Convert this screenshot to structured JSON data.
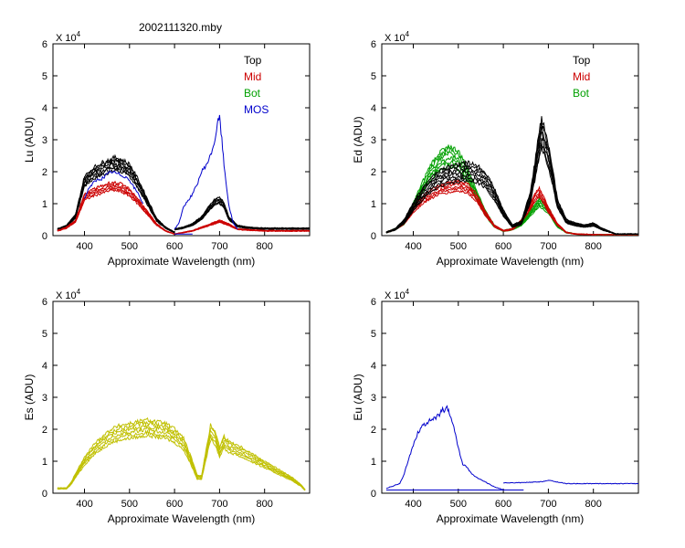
{
  "figure_title": "2002111320.mby",
  "chart_data": [
    {
      "id": "lu",
      "type": "line",
      "ylabel": "Lu  (ADU)",
      "xlabel": "Approximate Wavelength (nm)",
      "xlim": [
        330,
        900
      ],
      "ylim": [
        0,
        6
      ],
      "xticks": [
        400,
        500,
        600,
        700,
        800
      ],
      "yticks": [
        0,
        1,
        2,
        3,
        4,
        5,
        6
      ],
      "xtick_labels": [
        "400",
        "500",
        "600",
        "700",
        "800"
      ],
      "ytick_labels": [
        "0",
        "1",
        "2",
        "3",
        "4",
        "5",
        "6"
      ],
      "multiplier": "X 10",
      "multiplier_exp": "4",
      "legend": [
        {
          "label": "Top",
          "color": "#000000"
        },
        {
          "label": "Mid",
          "color": "#cc0000"
        },
        {
          "label": "Bot",
          "color": "#00a000"
        },
        {
          "label": "MOS",
          "color": "#0000cc"
        }
      ],
      "series": [
        {
          "name": "Top",
          "color": "#000000",
          "count": 7,
          "spread": 0.09,
          "segments": [
            {
              "x": [
                340,
                360,
                380,
                400,
                420,
                440,
                460,
                470,
                480,
                500,
                520,
                540,
                560,
                580,
                600
              ],
              "y": [
                0.2,
                0.3,
                0.6,
                1.7,
                1.95,
                2.1,
                2.2,
                2.25,
                2.2,
                2.05,
                1.6,
                1.05,
                0.5,
                0.25,
                0.1
              ]
            },
            {
              "x": [
                600,
                620,
                640,
                660,
                680,
                690,
                700,
                710,
                720,
                740,
                760,
                800,
                850,
                900
              ],
              "y": [
                0.2,
                0.25,
                0.35,
                0.55,
                0.9,
                1.05,
                1.1,
                0.95,
                0.55,
                0.3,
                0.25,
                0.22,
                0.22,
                0.22
              ]
            }
          ]
        },
        {
          "name": "Mid",
          "color": "#cc0000",
          "count": 5,
          "spread": 0.08,
          "segments": [
            {
              "x": [
                340,
                360,
                380,
                400,
                420,
                440,
                460,
                480,
                500,
                520,
                540,
                560,
                580,
                600
              ],
              "y": [
                0.15,
                0.25,
                0.45,
                1.2,
                1.35,
                1.45,
                1.55,
                1.5,
                1.35,
                1.05,
                0.7,
                0.35,
                0.15,
                0.05
              ]
            },
            {
              "x": [
                600,
                640,
                680,
                700,
                720,
                740,
                800,
                900
              ],
              "y": [
                0.05,
                0.15,
                0.35,
                0.45,
                0.35,
                0.2,
                0.15,
                0.15
              ]
            }
          ]
        },
        {
          "name": "MOS",
          "color": "#0000cc",
          "count": 1,
          "spread": 0,
          "segments": [
            {
              "x": [
                400,
                410,
                420,
                430,
                440,
                450,
                460,
                470,
                480,
                490,
                500,
                510,
                520,
                530
              ],
              "y": [
                1.15,
                1.5,
                1.65,
                1.75,
                1.8,
                1.9,
                2.0,
                1.95,
                1.9,
                1.85,
                1.75,
                1.5,
                1.3,
                1.0
              ]
            },
            {
              "x": [
                600,
                610,
                620,
                630,
                640,
                650,
                660,
                670,
                680,
                690,
                695,
                700,
                705,
                710,
                720,
                730,
                740
              ],
              "y": [
                0.2,
                0.4,
                0.9,
                1.1,
                1.3,
                1.6,
                2.0,
                2.2,
                2.5,
                3.0,
                3.5,
                3.7,
                3.0,
                2.2,
                1.0,
                0.4,
                0.2
              ]
            },
            {
              "x": [
                600,
                640
              ],
              "y": [
                0.05,
                0.05
              ]
            }
          ]
        }
      ]
    },
    {
      "id": "ed",
      "type": "line",
      "ylabel": "Ed  (ADU)",
      "xlabel": "Approximate Wavelength (nm)",
      "xlim": [
        330,
        900
      ],
      "ylim": [
        0,
        6
      ],
      "xticks": [
        400,
        500,
        600,
        700,
        800
      ],
      "yticks": [
        0,
        1,
        2,
        3,
        4,
        5,
        6
      ],
      "xtick_labels": [
        "400",
        "500",
        "600",
        "700",
        "800"
      ],
      "ytick_labels": [
        "0",
        "1",
        "2",
        "3",
        "4",
        "5",
        "6"
      ],
      "multiplier": "X 10",
      "multiplier_exp": "4",
      "legend": [
        {
          "label": "Top",
          "color": "#000000"
        },
        {
          "label": "Mid",
          "color": "#cc0000"
        },
        {
          "label": "Bot",
          "color": "#00a000"
        }
      ],
      "series": [
        {
          "name": "Bot",
          "color": "#00a000",
          "count": 6,
          "spread": 0.12,
          "segments": [
            {
              "x": [
                340,
                360,
                380,
                400,
                420,
                440,
                460,
                480,
                500,
                520,
                540,
                560,
                580,
                600,
                620,
                640,
                660,
                680,
                700,
                720,
                740,
                760,
                800,
                850,
                900
              ],
              "y": [
                0.1,
                0.2,
                0.4,
                0.9,
                1.5,
                2.0,
                2.35,
                2.5,
                2.35,
                1.9,
                1.3,
                0.7,
                0.3,
                0.15,
                0.2,
                0.35,
                0.7,
                1.05,
                0.8,
                0.3,
                0.1,
                0.05,
                0.03,
                0.03,
                0.03
              ]
            }
          ]
        },
        {
          "name": "Mid",
          "color": "#cc0000",
          "count": 5,
          "spread": 0.1,
          "segments": [
            {
              "x": [
                340,
                360,
                380,
                400,
                420,
                440,
                460,
                480,
                500,
                520,
                540,
                560,
                580,
                600,
                620,
                640,
                660,
                670,
                680,
                690,
                700,
                720,
                740,
                760,
                800,
                850,
                900
              ],
              "y": [
                0.1,
                0.2,
                0.4,
                0.8,
                1.1,
                1.3,
                1.45,
                1.5,
                1.55,
                1.5,
                1.2,
                0.7,
                0.3,
                0.15,
                0.2,
                0.45,
                0.9,
                1.2,
                1.35,
                1.1,
                0.8,
                0.35,
                0.1,
                0.05,
                0.03,
                0.03,
                0.03
              ]
            }
          ]
        },
        {
          "name": "Top",
          "color": "#000000",
          "count": 7,
          "spread": 0.14,
          "segments": [
            {
              "x": [
                340,
                360,
                380,
                400,
                420,
                440,
                460,
                480,
                500,
                520,
                540,
                560,
                580,
                600,
                620,
                640,
                660,
                670,
                680,
                685,
                690,
                700,
                710,
                720,
                740,
                760,
                780,
                800,
                820,
                850,
                900
              ],
              "y": [
                0.1,
                0.2,
                0.45,
                0.9,
                1.3,
                1.6,
                1.8,
                1.9,
                1.95,
                2.0,
                1.95,
                1.75,
                1.3,
                0.7,
                0.3,
                0.4,
                1.2,
                2.0,
                2.9,
                3.2,
                3.0,
                2.5,
                1.8,
                1.0,
                0.45,
                0.35,
                0.3,
                0.35,
                0.2,
                0.05,
                0.05
              ]
            }
          ]
        }
      ]
    },
    {
      "id": "es",
      "type": "line",
      "ylabel": "Es  (ADU)",
      "xlabel": "Approximate Wavelength (nm)",
      "xlim": [
        330,
        900
      ],
      "ylim": [
        0,
        6
      ],
      "xticks": [
        400,
        500,
        600,
        700,
        800
      ],
      "yticks": [
        0,
        1,
        2,
        3,
        4,
        5,
        6
      ],
      "xtick_labels": [
        "400",
        "500",
        "600",
        "700",
        "800"
      ],
      "ytick_labels": [
        "0",
        "1",
        "2",
        "3",
        "4",
        "5",
        "6"
      ],
      "multiplier": "X 10",
      "multiplier_exp": "4",
      "legend": [],
      "series": [
        {
          "name": "Es",
          "color": "#c0c000",
          "count": 6,
          "spread": 0.12,
          "segments": [
            {
              "x": [
                340,
                360,
                370,
                380,
                400,
                420,
                440,
                460,
                480,
                500,
                520,
                540,
                560,
                580,
                600,
                620,
                640,
                650,
                660,
                670,
                680,
                690,
                700,
                710,
                720,
                740,
                760,
                780,
                800,
                820,
                840,
                860,
                880,
                890
              ],
              "y": [
                0.15,
                0.15,
                0.3,
                0.55,
                1.0,
                1.35,
                1.6,
                1.8,
                1.9,
                1.95,
                2.0,
                2.05,
                2.0,
                1.95,
                1.8,
                1.55,
                0.9,
                0.5,
                0.5,
                1.2,
                1.9,
                1.75,
                1.3,
                1.6,
                1.45,
                1.35,
                1.2,
                1.05,
                0.9,
                0.75,
                0.6,
                0.45,
                0.25,
                0.1
              ]
            }
          ]
        }
      ]
    },
    {
      "id": "eu",
      "type": "line",
      "ylabel": "Eu  (ADU)",
      "xlabel": "Approximate Wavelength (nm)",
      "xlim": [
        330,
        900
      ],
      "ylim": [
        0,
        6
      ],
      "xticks": [
        400,
        500,
        600,
        700,
        800
      ],
      "yticks": [
        0,
        1,
        2,
        3,
        4,
        5,
        6
      ],
      "xtick_labels": [
        "400",
        "500",
        "600",
        "700",
        "800"
      ],
      "ytick_labels": [
        "0",
        "1",
        "2",
        "3",
        "4",
        "5",
        "6"
      ],
      "multiplier": "X 10",
      "multiplier_exp": "4",
      "legend": [],
      "series": [
        {
          "name": "Eu",
          "color": "#0000cc",
          "count": 1,
          "spread": 0,
          "segments": [
            {
              "x": [
                340,
                360,
                370,
                380,
                390,
                400,
                410,
                420,
                430,
                440,
                450,
                460,
                465,
                470,
                475,
                480,
                490,
                500,
                510,
                520,
                530,
                540,
                560,
                580,
                600
              ],
              "y": [
                0.15,
                0.25,
                0.3,
                0.6,
                1.1,
                1.5,
                1.9,
                2.1,
                2.2,
                2.3,
                2.35,
                2.5,
                2.6,
                2.55,
                2.65,
                2.5,
                2.1,
                1.4,
                0.9,
                0.8,
                0.6,
                0.5,
                0.35,
                0.2,
                0.1
              ]
            },
            {
              "x": [
                340,
                645
              ],
              "y": [
                0.1,
                0.1
              ]
            },
            {
              "x": [
                600,
                640,
                680,
                700,
                720,
                740,
                800,
                850,
                900
              ],
              "y": [
                0.32,
                0.33,
                0.35,
                0.4,
                0.35,
                0.3,
                0.3,
                0.3,
                0.3
              ]
            }
          ]
        }
      ]
    }
  ]
}
